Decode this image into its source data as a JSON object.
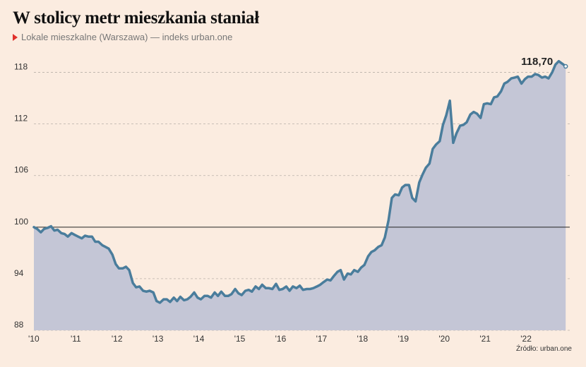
{
  "header": {
    "title": "W stolicy metr mieszkania staniał",
    "subtitle": "Lokale mieszkalne (Warszawa) — indeks urban.one"
  },
  "source": "Źródło: urban.one",
  "colors": {
    "line": "#4a7d9c",
    "area": "#c4c6d6",
    "grid": "#b8b0a8",
    "baseline": "#222222",
    "background": "#fbece0",
    "marker": "#e0302b"
  },
  "chart_data": {
    "type": "area",
    "title": "W stolicy metr mieszkania staniał",
    "subtitle": "Lokale mieszkalne (Warszawa) — indeks urban.one",
    "ylim": [
      88,
      121
    ],
    "yticks": [
      88,
      94,
      100,
      106,
      112,
      118
    ],
    "ytick_labels": [
      "88",
      "94",
      "100",
      "106",
      "112",
      "118"
    ],
    "xlim": [
      2010,
      2023.1
    ],
    "xticks": [
      2010,
      2011,
      2012,
      2013,
      2014,
      2015,
      2016,
      2017,
      2018,
      2019,
      2020,
      2021,
      2022
    ],
    "xtick_labels": [
      "'10",
      "'11",
      "'12",
      "'13",
      "'14",
      "'15",
      "'16",
      "'17",
      "'18",
      "'19",
      "'20",
      "'21",
      "'22"
    ],
    "baseline": 100,
    "grid": "horizontal dashed",
    "last_value_label": "118,70",
    "series": [
      {
        "values": [
          [
            2010.0,
            100.0
          ],
          [
            2010.08,
            99.8
          ],
          [
            2010.17,
            99.4
          ],
          [
            2010.25,
            99.8
          ],
          [
            2010.33,
            99.9
          ],
          [
            2010.42,
            100.1
          ],
          [
            2010.5,
            99.6
          ],
          [
            2010.58,
            99.7
          ],
          [
            2010.67,
            99.3
          ],
          [
            2010.75,
            99.2
          ],
          [
            2010.83,
            98.9
          ],
          [
            2010.92,
            99.3
          ],
          [
            2011.0,
            99.1
          ],
          [
            2011.08,
            98.9
          ],
          [
            2011.17,
            98.7
          ],
          [
            2011.25,
            99.0
          ],
          [
            2011.33,
            98.9
          ],
          [
            2011.42,
            98.9
          ],
          [
            2011.5,
            98.3
          ],
          [
            2011.58,
            98.3
          ],
          [
            2011.67,
            97.9
          ],
          [
            2011.75,
            97.7
          ],
          [
            2011.83,
            97.5
          ],
          [
            2011.92,
            96.8
          ],
          [
            2012.0,
            95.7
          ],
          [
            2012.08,
            95.2
          ],
          [
            2012.17,
            95.2
          ],
          [
            2012.25,
            95.4
          ],
          [
            2012.33,
            95.0
          ],
          [
            2012.42,
            93.5
          ],
          [
            2012.5,
            93.0
          ],
          [
            2012.58,
            93.1
          ],
          [
            2012.67,
            92.6
          ],
          [
            2012.75,
            92.5
          ],
          [
            2012.83,
            92.6
          ],
          [
            2012.92,
            92.4
          ],
          [
            2013.0,
            91.4
          ],
          [
            2013.08,
            91.2
          ],
          [
            2013.17,
            91.6
          ],
          [
            2013.25,
            91.6
          ],
          [
            2013.33,
            91.3
          ],
          [
            2013.42,
            91.8
          ],
          [
            2013.5,
            91.4
          ],
          [
            2013.58,
            91.9
          ],
          [
            2013.67,
            91.5
          ],
          [
            2013.75,
            91.6
          ],
          [
            2013.83,
            91.9
          ],
          [
            2013.92,
            92.4
          ],
          [
            2014.0,
            91.8
          ],
          [
            2014.08,
            91.6
          ],
          [
            2014.17,
            92.0
          ],
          [
            2014.25,
            92.0
          ],
          [
            2014.33,
            91.8
          ],
          [
            2014.42,
            92.4
          ],
          [
            2014.5,
            92.0
          ],
          [
            2014.58,
            92.5
          ],
          [
            2014.67,
            92.0
          ],
          [
            2014.75,
            92.0
          ],
          [
            2014.83,
            92.2
          ],
          [
            2014.92,
            92.8
          ],
          [
            2015.0,
            92.3
          ],
          [
            2015.08,
            92.1
          ],
          [
            2015.17,
            92.6
          ],
          [
            2015.25,
            92.7
          ],
          [
            2015.33,
            92.5
          ],
          [
            2015.42,
            93.1
          ],
          [
            2015.5,
            92.8
          ],
          [
            2015.58,
            93.3
          ],
          [
            2015.67,
            92.9
          ],
          [
            2015.75,
            92.9
          ],
          [
            2015.83,
            92.8
          ],
          [
            2015.92,
            93.4
          ],
          [
            2016.0,
            92.7
          ],
          [
            2016.08,
            92.8
          ],
          [
            2016.17,
            93.1
          ],
          [
            2016.25,
            92.6
          ],
          [
            2016.33,
            93.1
          ],
          [
            2016.42,
            92.9
          ],
          [
            2016.5,
            93.2
          ],
          [
            2016.58,
            92.7
          ],
          [
            2016.67,
            92.8
          ],
          [
            2016.75,
            92.8
          ],
          [
            2016.83,
            92.9
          ],
          [
            2016.92,
            93.1
          ],
          [
            2017.0,
            93.3
          ],
          [
            2017.08,
            93.6
          ],
          [
            2017.17,
            93.9
          ],
          [
            2017.25,
            93.8
          ],
          [
            2017.33,
            94.3
          ],
          [
            2017.42,
            94.8
          ],
          [
            2017.5,
            95.0
          ],
          [
            2017.58,
            93.9
          ],
          [
            2017.67,
            94.6
          ],
          [
            2017.75,
            94.5
          ],
          [
            2017.83,
            95.0
          ],
          [
            2017.92,
            94.8
          ],
          [
            2018.0,
            95.3
          ],
          [
            2018.08,
            95.6
          ],
          [
            2018.17,
            96.6
          ],
          [
            2018.25,
            97.1
          ],
          [
            2018.33,
            97.3
          ],
          [
            2018.42,
            97.7
          ],
          [
            2018.5,
            97.9
          ],
          [
            2018.58,
            98.8
          ],
          [
            2018.67,
            100.8
          ],
          [
            2018.75,
            103.4
          ],
          [
            2018.83,
            103.8
          ],
          [
            2018.92,
            103.7
          ],
          [
            2019.0,
            104.6
          ],
          [
            2019.08,
            104.9
          ],
          [
            2019.17,
            104.9
          ],
          [
            2019.25,
            103.4
          ],
          [
            2019.33,
            103.0
          ],
          [
            2019.42,
            105.2
          ],
          [
            2019.5,
            106.1
          ],
          [
            2019.58,
            106.9
          ],
          [
            2019.67,
            107.4
          ],
          [
            2019.75,
            109.1
          ],
          [
            2019.83,
            109.6
          ],
          [
            2019.92,
            110.0
          ],
          [
            2020.0,
            111.9
          ],
          [
            2020.08,
            113.0
          ],
          [
            2020.17,
            114.7
          ],
          [
            2020.25,
            109.8
          ],
          [
            2020.33,
            110.9
          ],
          [
            2020.42,
            111.8
          ],
          [
            2020.5,
            111.9
          ],
          [
            2020.58,
            112.2
          ],
          [
            2020.67,
            113.1
          ],
          [
            2020.75,
            113.4
          ],
          [
            2020.83,
            113.2
          ],
          [
            2020.92,
            112.7
          ],
          [
            2021.0,
            114.3
          ],
          [
            2021.08,
            114.4
          ],
          [
            2021.17,
            114.3
          ],
          [
            2021.25,
            115.1
          ],
          [
            2021.33,
            115.2
          ],
          [
            2021.42,
            115.8
          ],
          [
            2021.5,
            116.7
          ],
          [
            2021.58,
            116.9
          ],
          [
            2021.67,
            117.3
          ],
          [
            2021.75,
            117.4
          ],
          [
            2021.83,
            117.5
          ],
          [
            2021.92,
            116.7
          ],
          [
            2022.0,
            117.2
          ],
          [
            2022.08,
            117.5
          ],
          [
            2022.17,
            117.5
          ],
          [
            2022.25,
            117.8
          ],
          [
            2022.33,
            117.7
          ],
          [
            2022.42,
            117.4
          ],
          [
            2022.5,
            117.5
          ],
          [
            2022.58,
            117.3
          ],
          [
            2022.67,
            118.0
          ],
          [
            2022.75,
            118.9
          ],
          [
            2022.83,
            119.3
          ],
          [
            2022.92,
            119.0
          ],
          [
            2023.0,
            118.7
          ]
        ]
      }
    ]
  }
}
